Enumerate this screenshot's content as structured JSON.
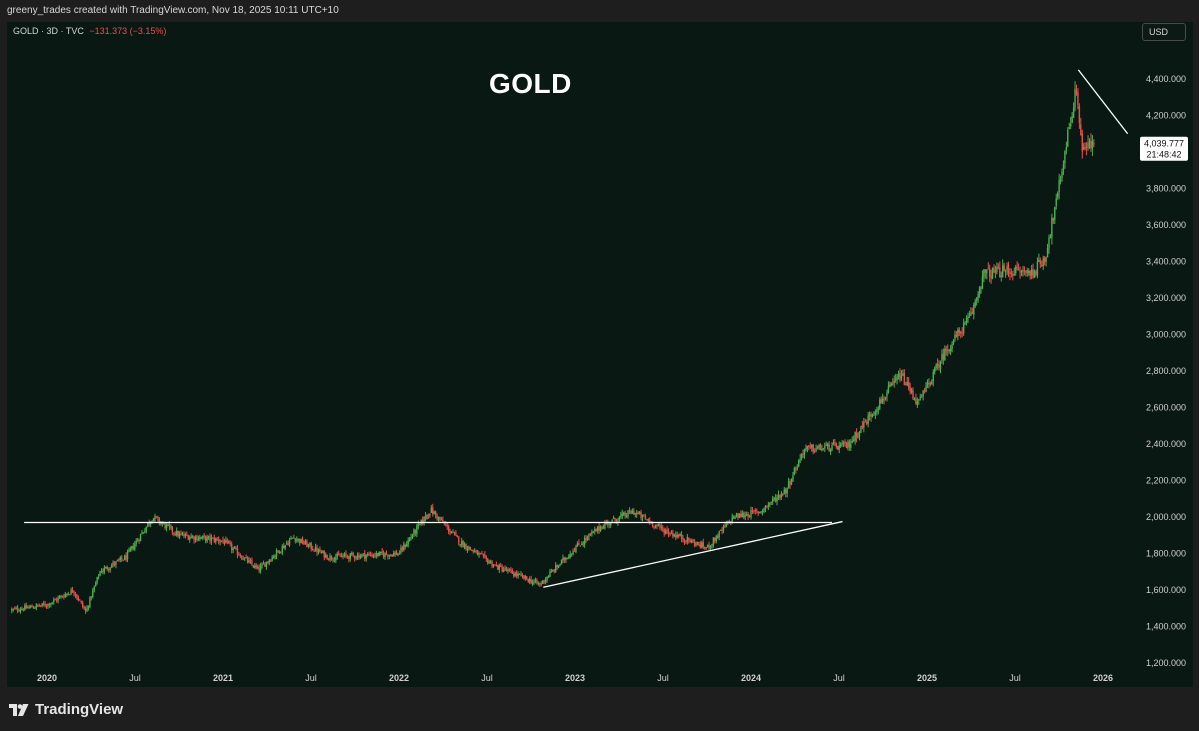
{
  "header": {
    "credit": "greeny_trades created with TradingView.com, Nov 18, 2025 10:11 UTC+10"
  },
  "legend": {
    "symbol": "GOLD · 3D · TVC",
    "change": "−131.373 (−3.15%)"
  },
  "currency": "USD",
  "footer": {
    "brand": "TradingView",
    "logo_icon": "tradingview-logo-icon"
  },
  "colors": {
    "background": "#0a1813",
    "up": "#4caf50",
    "down": "#e8504e",
    "lines": "#ffffff"
  },
  "chart_data": {
    "type": "candlestick",
    "title": "GOLD",
    "symbol": "GOLD",
    "timeframe": "3D",
    "source": "TVC",
    "currency": "USD",
    "x_ticks": [
      "2020",
      "Jul",
      "2021",
      "Jul",
      "2022",
      "Jul",
      "2023",
      "Jul",
      "2024",
      "Jul",
      "2025",
      "Jul",
      "2026"
    ],
    "y_ticks": [
      "1,200.000",
      "1,400.000",
      "1,600.000",
      "1,800.000",
      "2,000.000",
      "2,200.000",
      "2,400.000",
      "2,600.000",
      "2,800.000",
      "3,000.000",
      "3,200.000",
      "3,400.000",
      "3,600.000",
      "3,800.000",
      "4,000.000",
      "4,200.000",
      "4,400.000"
    ],
    "ylim": [
      1200,
      4500
    ],
    "last_price": "4,039.777",
    "countdown": "21:48:42",
    "price_path": [
      {
        "t": 2019.8,
        "p": 1490
      },
      {
        "t": 2020.0,
        "p": 1520
      },
      {
        "t": 2020.15,
        "p": 1600
      },
      {
        "t": 2020.22,
        "p": 1480
      },
      {
        "t": 2020.3,
        "p": 1700
      },
      {
        "t": 2020.45,
        "p": 1780
      },
      {
        "t": 2020.6,
        "p": 2000
      },
      {
        "t": 2020.75,
        "p": 1900
      },
      {
        "t": 2021.0,
        "p": 1870
      },
      {
        "t": 2021.2,
        "p": 1710
      },
      {
        "t": 2021.4,
        "p": 1890
      },
      {
        "t": 2021.6,
        "p": 1780
      },
      {
        "t": 2021.8,
        "p": 1790
      },
      {
        "t": 2022.0,
        "p": 1800
      },
      {
        "t": 2022.18,
        "p": 2040
      },
      {
        "t": 2022.35,
        "p": 1860
      },
      {
        "t": 2022.55,
        "p": 1730
      },
      {
        "t": 2022.8,
        "p": 1630
      },
      {
        "t": 2023.0,
        "p": 1830
      },
      {
        "t": 2023.15,
        "p": 1950
      },
      {
        "t": 2023.33,
        "p": 2030
      },
      {
        "t": 2023.5,
        "p": 1930
      },
      {
        "t": 2023.75,
        "p": 1830
      },
      {
        "t": 2023.9,
        "p": 2000
      },
      {
        "t": 2024.05,
        "p": 2030
      },
      {
        "t": 2024.2,
        "p": 2150
      },
      {
        "t": 2024.3,
        "p": 2370
      },
      {
        "t": 2024.55,
        "p": 2390
      },
      {
        "t": 2024.75,
        "p": 2650
      },
      {
        "t": 2024.85,
        "p": 2780
      },
      {
        "t": 2024.95,
        "p": 2620
      },
      {
        "t": 2025.1,
        "p": 2900
      },
      {
        "t": 2025.25,
        "p": 3100
      },
      {
        "t": 2025.32,
        "p": 3330
      },
      {
        "t": 2025.45,
        "p": 3350
      },
      {
        "t": 2025.6,
        "p": 3340
      },
      {
        "t": 2025.67,
        "p": 3420
      },
      {
        "t": 2025.74,
        "p": 3750
      },
      {
        "t": 2025.8,
        "p": 4100
      },
      {
        "t": 2025.85,
        "p": 4350
      },
      {
        "t": 2025.88,
        "p": 4020
      },
      {
        "t": 2025.95,
        "p": 4040
      }
    ],
    "drawings": [
      {
        "kind": "horizontal-resistance",
        "from": {
          "t": 2019.87,
          "p": 1970
        },
        "to": {
          "t": 2024.46,
          "p": 1970
        }
      },
      {
        "kind": "rising-trendline",
        "from": {
          "t": 2022.82,
          "p": 1615
        },
        "to": {
          "t": 2024.52,
          "p": 1975
        }
      },
      {
        "kind": "falling-trendline",
        "from": {
          "t": 2025.86,
          "p": 4450
        },
        "to": {
          "t": 2026.14,
          "p": 4100
        }
      }
    ]
  }
}
